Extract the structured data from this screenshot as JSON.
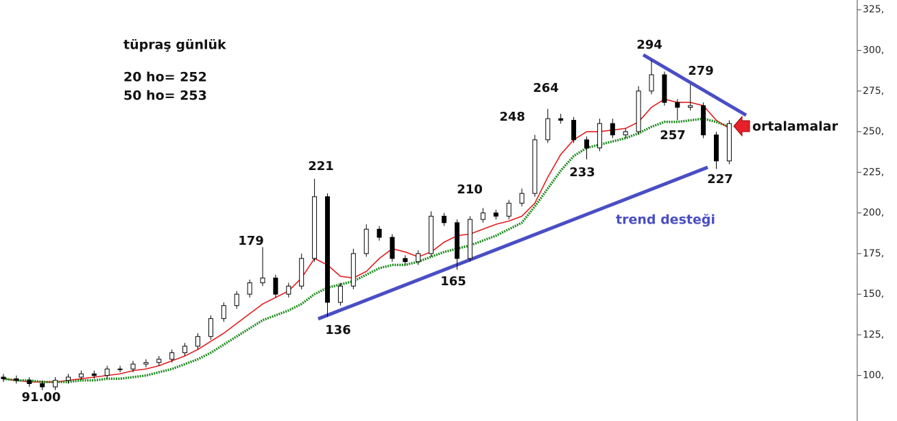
{
  "chart_data": {
    "type": "candlestick",
    "title": "tüpraş günlük",
    "subtitle_lines": [
      "20 ho= 252",
      "50 ho= 253"
    ],
    "open": [
      99,
      98,
      97,
      95,
      93,
      97,
      99,
      101,
      100,
      104,
      104,
      107,
      108,
      110,
      114,
      118,
      124,
      135,
      143,
      150,
      157,
      160,
      150,
      155,
      172,
      210,
      145,
      155,
      175,
      190,
      185,
      172,
      170,
      175,
      198,
      194,
      172,
      196,
      200,
      198,
      206,
      212,
      245,
      258,
      257,
      245,
      240,
      255,
      248,
      250,
      275,
      285,
      268,
      265,
      266,
      248,
      232
    ],
    "high": [
      101,
      100,
      99,
      97,
      99,
      101,
      103,
      103,
      106,
      106,
      109,
      110,
      112,
      116,
      120,
      126,
      137,
      145,
      152,
      159,
      179,
      162,
      157,
      175,
      221,
      212,
      157,
      178,
      193,
      192,
      187,
      174,
      177,
      201,
      200,
      196,
      198,
      203,
      202,
      208,
      215,
      248,
      264,
      261,
      259,
      247,
      258,
      258,
      252,
      278,
      294,
      287,
      270,
      279,
      268,
      250,
      257
    ],
    "low": [
      96,
      95,
      93,
      91,
      91,
      95,
      97,
      98,
      98,
      102,
      102,
      105,
      106,
      108,
      112,
      116,
      122,
      133,
      141,
      148,
      155,
      148,
      148,
      153,
      170,
      136,
      143,
      153,
      173,
      183,
      170,
      168,
      168,
      173,
      192,
      165,
      170,
      194,
      196,
      196,
      204,
      210,
      243,
      255,
      243,
      233,
      238,
      246,
      246,
      248,
      273,
      266,
      257,
      263,
      246,
      227,
      230
    ],
    "close": [
      98,
      97,
      95,
      93,
      97,
      99,
      101,
      100,
      104,
      104,
      107,
      108,
      110,
      114,
      118,
      124,
      135,
      143,
      150,
      157,
      160,
      150,
      155,
      172,
      210,
      145,
      155,
      175,
      190,
      185,
      172,
      170,
      175,
      198,
      194,
      172,
      196,
      200,
      198,
      206,
      212,
      245,
      258,
      257,
      245,
      240,
      255,
      248,
      250,
      275,
      285,
      268,
      265,
      266,
      248,
      232,
      255
    ],
    "up_color": "#ffffff",
    "down_color": "#000000",
    "series": [
      {
        "color": "#e31a1c",
        "values": [
          98,
          97,
          96,
          96,
          96,
          97,
          98,
          99,
          100,
          101,
          103,
          104,
          106,
          109,
          112,
          116,
          121,
          126,
          132,
          138,
          144,
          148,
          152,
          160,
          172,
          168,
          161,
          160,
          164,
          172,
          178,
          176,
          173,
          176,
          182,
          186,
          187,
          190,
          193,
          195,
          198,
          206,
          222,
          236,
          245,
          250,
          250,
          251,
          252,
          256,
          265,
          270,
          268,
          268,
          266,
          257,
          252
        ]
      },
      {
        "color": "#1a8a1a",
        "values": [
          98,
          97,
          97,
          96,
          96,
          96,
          97,
          97,
          98,
          98,
          99,
          100,
          102,
          104,
          107,
          110,
          114,
          119,
          124,
          129,
          134,
          137,
          140,
          144,
          150,
          154,
          156,
          158,
          162,
          166,
          168,
          168,
          170,
          173,
          176,
          178,
          180,
          183,
          186,
          190,
          194,
          204,
          215,
          226,
          235,
          240,
          242,
          244,
          246,
          249,
          253,
          256,
          256,
          257,
          258,
          256,
          253
        ]
      }
    ],
    "ylim": [
      72,
      331
    ],
    "yticks": [
      {
        "value": 100,
        "label": "100,"
      },
      {
        "value": 125,
        "label": "125,"
      },
      {
        "value": 150,
        "label": "150,"
      },
      {
        "value": 175,
        "label": "175,"
      },
      {
        "value": 200,
        "label": "200,"
      },
      {
        "value": 225,
        "label": "225,"
      },
      {
        "value": 250,
        "label": "250,"
      },
      {
        "value": 275,
        "label": "275,"
      },
      {
        "value": 300,
        "label": "300,"
      },
      {
        "value": 325,
        "label": "325,"
      }
    ],
    "level_labels": [
      "294",
      "279",
      "264",
      "248",
      "221",
      "210",
      "179",
      "257",
      "233",
      "227",
      "165",
      "136",
      "91.00"
    ],
    "annotations": [
      "ortalamalar",
      "trend desteği"
    ]
  }
}
